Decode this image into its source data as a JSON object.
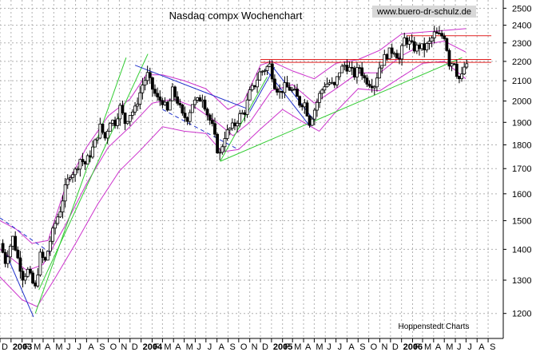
{
  "colors": {
    "candle": "#000000",
    "bollinger": "#cc33cc",
    "uptrend": "#33cc33",
    "downtrend": "#2233cc",
    "resistance": "#e02020",
    "grid": "#b0b0b0",
    "watermark_bg": "#d8d8d8"
  },
  "chart_data": {
    "type": "candlestick",
    "title": "Nasdaq compx Wochenchart",
    "watermark": "www.buero-dr-schulz.de",
    "source": "Hoppenstedt Charts",
    "y_axis": {
      "position": "right",
      "scale": "log",
      "ylim": [
        1130,
        2550
      ],
      "ticks": [
        1200,
        1300,
        1400,
        1500,
        1600,
        1700,
        1800,
        1900,
        2000,
        2100,
        2200,
        2300,
        2400,
        2500
      ]
    },
    "x_axis": {
      "range": [
        "2002-12-01",
        "2006-09-30"
      ],
      "tick_labels": [
        {
          "label": "D",
          "date": "2002-12-01"
        },
        {
          "label": "2003",
          "date": "2003-01-01",
          "bold": true
        },
        {
          "label": "F",
          "date": "2003-02-01"
        },
        {
          "label": "M",
          "date": "2003-03-01"
        },
        {
          "label": "A",
          "date": "2003-04-01"
        },
        {
          "label": "M",
          "date": "2003-05-01"
        },
        {
          "label": "J",
          "date": "2003-06-01"
        },
        {
          "label": "J",
          "date": "2003-07-01"
        },
        {
          "label": "A",
          "date": "2003-08-01"
        },
        {
          "label": "S",
          "date": "2003-09-01"
        },
        {
          "label": "O",
          "date": "2003-10-01"
        },
        {
          "label": "N",
          "date": "2003-11-01"
        },
        {
          "label": "D",
          "date": "2003-12-01"
        },
        {
          "label": "2004",
          "date": "2004-01-01",
          "bold": true
        },
        {
          "label": "F",
          "date": "2004-02-01"
        },
        {
          "label": "M",
          "date": "2004-03-01"
        },
        {
          "label": "A",
          "date": "2004-04-01"
        },
        {
          "label": "M",
          "date": "2004-05-01"
        },
        {
          "label": "J",
          "date": "2004-06-01"
        },
        {
          "label": "J",
          "date": "2004-07-01"
        },
        {
          "label": "A",
          "date": "2004-08-01"
        },
        {
          "label": "S",
          "date": "2004-09-01"
        },
        {
          "label": "O",
          "date": "2004-10-01"
        },
        {
          "label": "N",
          "date": "2004-11-01"
        },
        {
          "label": "D",
          "date": "2004-12-01"
        },
        {
          "label": "2005",
          "date": "2005-01-01",
          "bold": true
        },
        {
          "label": "F",
          "date": "2005-02-01"
        },
        {
          "label": "M",
          "date": "2005-03-01"
        },
        {
          "label": "A",
          "date": "2005-04-01"
        },
        {
          "label": "M",
          "date": "2005-05-01"
        },
        {
          "label": "J",
          "date": "2005-06-01"
        },
        {
          "label": "J",
          "date": "2005-07-01"
        },
        {
          "label": "A",
          "date": "2005-08-01"
        },
        {
          "label": "S",
          "date": "2005-09-01"
        },
        {
          "label": "O",
          "date": "2005-10-01"
        },
        {
          "label": "N",
          "date": "2005-11-01"
        },
        {
          "label": "D",
          "date": "2005-12-01"
        },
        {
          "label": "2006",
          "date": "2006-01-01",
          "bold": true
        },
        {
          "label": "F",
          "date": "2006-02-01"
        },
        {
          "label": "M",
          "date": "2006-03-01"
        },
        {
          "label": "A",
          "date": "2006-04-01"
        },
        {
          "label": "M",
          "date": "2006-05-01"
        },
        {
          "label": "J",
          "date": "2006-06-01"
        },
        {
          "label": "J",
          "date": "2006-07-01"
        },
        {
          "label": "A",
          "date": "2006-08-01"
        },
        {
          "label": "S",
          "date": "2006-09-01"
        }
      ]
    },
    "grid": true,
    "price_path": [
      [
        "2002-12-06",
        1420
      ],
      [
        "2002-12-20",
        1360
      ],
      [
        "2003-01-10",
        1440
      ],
      [
        "2003-01-24",
        1370
      ],
      [
        "2003-02-07",
        1310
      ],
      [
        "2003-02-21",
        1330
      ],
      [
        "2003-03-07",
        1290
      ],
      [
        "2003-03-14",
        1275
      ],
      [
        "2003-03-28",
        1380
      ],
      [
        "2003-04-11",
        1360
      ],
      [
        "2003-04-25",
        1430
      ],
      [
        "2003-05-09",
        1490
      ],
      [
        "2003-05-23",
        1540
      ],
      [
        "2003-06-06",
        1620
      ],
      [
        "2003-06-20",
        1680
      ],
      [
        "2003-07-04",
        1690
      ],
      [
        "2003-07-18",
        1740
      ],
      [
        "2003-08-01",
        1720
      ],
      [
        "2003-08-15",
        1760
      ],
      [
        "2003-08-29",
        1810
      ],
      [
        "2003-09-12",
        1880
      ],
      [
        "2003-09-26",
        1830
      ],
      [
        "2003-10-10",
        1910
      ],
      [
        "2003-10-24",
        1900
      ],
      [
        "2003-11-07",
        1970
      ],
      [
        "2003-11-21",
        1900
      ],
      [
        "2003-12-05",
        1940
      ],
      [
        "2003-12-19",
        1960
      ],
      [
        "2004-01-09",
        2080
      ],
      [
        "2004-01-23",
        2130
      ],
      [
        "2004-02-06",
        2060
      ],
      [
        "2004-02-20",
        2010
      ],
      [
        "2004-03-05",
        2000
      ],
      [
        "2004-03-19",
        1950
      ],
      [
        "2004-04-02",
        2050
      ],
      [
        "2004-04-16",
        2000
      ],
      [
        "2004-04-30",
        1930
      ],
      [
        "2004-05-14",
        1920
      ],
      [
        "2004-05-28",
        1990
      ],
      [
        "2004-06-11",
        2000
      ],
      [
        "2004-06-25",
        2020
      ],
      [
        "2004-07-09",
        1940
      ],
      [
        "2004-07-23",
        1880
      ],
      [
        "2004-08-06",
        1780
      ],
      [
        "2004-08-13",
        1760
      ],
      [
        "2004-08-27",
        1840
      ],
      [
        "2004-09-10",
        1870
      ],
      [
        "2004-09-24",
        1890
      ],
      [
        "2004-10-08",
        1930
      ],
      [
        "2004-10-22",
        1950
      ],
      [
        "2004-11-05",
        2040
      ],
      [
        "2004-11-19",
        2080
      ],
      [
        "2004-12-03",
        2140
      ],
      [
        "2004-12-17",
        2160
      ],
      [
        "2004-12-31",
        2180
      ],
      [
        "2005-01-14",
        2080
      ],
      [
        "2005-01-28",
        2040
      ],
      [
        "2005-02-11",
        2070
      ],
      [
        "2005-02-25",
        2060
      ],
      [
        "2005-03-11",
        2040
      ],
      [
        "2005-03-25",
        1990
      ],
      [
        "2005-04-08",
        1990
      ],
      [
        "2005-04-22",
        1900
      ],
      [
        "2005-05-06",
        1960
      ],
      [
        "2005-05-20",
        2030
      ],
      [
        "2005-06-03",
        2080
      ],
      [
        "2005-06-17",
        2090
      ],
      [
        "2005-07-01",
        2070
      ],
      [
        "2005-07-15",
        2150
      ],
      [
        "2005-07-29",
        2180
      ],
      [
        "2005-08-12",
        2160
      ],
      [
        "2005-08-26",
        2130
      ],
      [
        "2005-09-09",
        2170
      ],
      [
        "2005-09-23",
        2110
      ],
      [
        "2005-10-07",
        2090
      ],
      [
        "2005-10-21",
        2080
      ],
      [
        "2005-11-04",
        2170
      ],
      [
        "2005-11-18",
        2220
      ],
      [
        "2005-12-02",
        2250
      ],
      [
        "2005-12-16",
        2260
      ],
      [
        "2005-12-30",
        2210
      ],
      [
        "2006-01-13",
        2320
      ],
      [
        "2006-01-27",
        2300
      ],
      [
        "2006-02-10",
        2270
      ],
      [
        "2006-02-24",
        2280
      ],
      [
        "2006-03-10",
        2270
      ],
      [
        "2006-03-24",
        2300
      ],
      [
        "2006-04-07",
        2350
      ],
      [
        "2006-04-21",
        2340
      ],
      [
        "2006-05-05",
        2340
      ],
      [
        "2006-05-12",
        2270
      ],
      [
        "2006-05-19",
        2190
      ],
      [
        "2006-06-02",
        2200
      ],
      [
        "2006-06-09",
        2140
      ],
      [
        "2006-06-16",
        2110
      ],
      [
        "2006-06-23",
        2120
      ],
      [
        "2006-06-30",
        2170
      ]
    ],
    "bollinger_bands": {
      "middle": [
        [
          "2002-12-01",
          1400
        ],
        [
          "2003-02-15",
          1330
        ],
        [
          "2003-04-01",
          1350
        ],
        [
          "2003-06-01",
          1480
        ],
        [
          "2003-08-01",
          1640
        ],
        [
          "2003-10-01",
          1790
        ],
        [
          "2003-12-01",
          1880
        ],
        [
          "2004-02-01",
          1990
        ],
        [
          "2004-04-01",
          2010
        ],
        [
          "2004-06-01",
          1970
        ],
        [
          "2004-08-01",
          1900
        ],
        [
          "2004-09-15",
          1840
        ],
        [
          "2004-11-01",
          1900
        ],
        [
          "2005-01-01",
          2050
        ],
        [
          "2005-03-01",
          2080
        ],
        [
          "2005-05-01",
          1990
        ],
        [
          "2005-07-01",
          2060
        ],
        [
          "2005-09-01",
          2140
        ],
        [
          "2005-11-01",
          2140
        ],
        [
          "2006-01-01",
          2230
        ],
        [
          "2006-03-01",
          2290
        ],
        [
          "2006-05-01",
          2310
        ],
        [
          "2006-06-30",
          2250
        ]
      ],
      "upper": [
        [
          "2002-12-01",
          1500
        ],
        [
          "2003-01-15",
          1470
        ],
        [
          "2003-03-01",
          1420
        ],
        [
          "2003-04-15",
          1430
        ],
        [
          "2003-06-01",
          1620
        ],
        [
          "2003-08-01",
          1790
        ],
        [
          "2003-10-01",
          1930
        ],
        [
          "2003-12-01",
          2010
        ],
        [
          "2004-01-15",
          2130
        ],
        [
          "2004-03-01",
          2130
        ],
        [
          "2004-05-01",
          2100
        ],
        [
          "2004-07-01",
          2060
        ],
        [
          "2004-09-01",
          1960
        ],
        [
          "2004-10-15",
          2000
        ],
        [
          "2004-12-01",
          2180
        ],
        [
          "2005-01-01",
          2200
        ],
        [
          "2005-03-01",
          2150
        ],
        [
          "2005-05-01",
          2110
        ],
        [
          "2005-07-01",
          2190
        ],
        [
          "2005-09-01",
          2210
        ],
        [
          "2005-11-01",
          2260
        ],
        [
          "2006-01-01",
          2350
        ],
        [
          "2006-03-01",
          2360
        ],
        [
          "2006-05-01",
          2370
        ],
        [
          "2006-06-30",
          2380
        ]
      ],
      "lower": [
        [
          "2002-12-01",
          1310
        ],
        [
          "2003-02-01",
          1240
        ],
        [
          "2003-03-15",
          1220
        ],
        [
          "2003-05-01",
          1300
        ],
        [
          "2003-07-01",
          1420
        ],
        [
          "2003-09-01",
          1560
        ],
        [
          "2003-11-01",
          1690
        ],
        [
          "2004-01-01",
          1780
        ],
        [
          "2004-03-01",
          1880
        ],
        [
          "2004-05-01",
          1860
        ],
        [
          "2004-07-01",
          1850
        ],
        [
          "2004-08-15",
          1770
        ],
        [
          "2004-10-01",
          1780
        ],
        [
          "2004-12-01",
          1870
        ],
        [
          "2005-02-01",
          1960
        ],
        [
          "2005-04-01",
          1900
        ],
        [
          "2005-05-15",
          1860
        ],
        [
          "2005-07-01",
          1950
        ],
        [
          "2005-09-01",
          2060
        ],
        [
          "2005-11-01",
          2050
        ],
        [
          "2006-01-01",
          2120
        ],
        [
          "2006-03-01",
          2190
        ],
        [
          "2006-05-01",
          2200
        ],
        [
          "2006-06-30",
          2110
        ]
      ]
    },
    "trend_lines": [
      {
        "color": "uptrend",
        "style": "solid",
        "points": [
          [
            "2003-03-10",
            1200
          ],
          [
            "2003-11-20",
            2220
          ]
        ]
      },
      {
        "color": "uptrend",
        "style": "solid",
        "points": [
          [
            "2003-03-20",
            1270
          ],
          [
            "2004-01-20",
            2240
          ]
        ]
      },
      {
        "color": "uptrend",
        "style": "solid",
        "points": [
          [
            "2004-08-10",
            1730
          ],
          [
            "2006-06-20",
            2220
          ]
        ]
      },
      {
        "color": "uptrend",
        "style": "solid",
        "points": [
          [
            "2004-08-10",
            1730
          ],
          [
            "2004-12-20",
            2120
          ]
        ]
      },
      {
        "color": "downtrend",
        "style": "solid",
        "points": [
          [
            "2002-12-20",
            1380
          ],
          [
            "2003-03-05",
            1190
          ]
        ]
      },
      {
        "color": "downtrend",
        "style": "dashed",
        "points": [
          [
            "2002-12-01",
            1510
          ],
          [
            "2003-04-20",
            1390
          ]
        ]
      },
      {
        "color": "downtrend",
        "style": "solid",
        "points": [
          [
            "2003-12-15",
            2180
          ],
          [
            "2004-10-30",
            1960
          ]
        ]
      },
      {
        "color": "downtrend",
        "style": "dashed",
        "points": [
          [
            "2004-03-01",
            1960
          ],
          [
            "2004-09-30",
            1780
          ]
        ]
      },
      {
        "color": "downtrend",
        "style": "solid",
        "points": [
          [
            "2004-12-15",
            2160
          ],
          [
            "2005-04-20",
            1880
          ]
        ]
      },
      {
        "color": "downtrend",
        "style": "solid",
        "points": [
          [
            "2005-01-05",
            2170
          ],
          [
            "2005-04-30",
            1910
          ]
        ]
      },
      {
        "color": "downtrend",
        "style": "solid",
        "points": [
          [
            "2004-11-01",
            1950
          ],
          [
            "2005-01-10",
            2170
          ]
        ]
      },
      {
        "color": "resistance",
        "style": "solid",
        "points": [
          [
            "2004-12-01",
            2210
          ],
          [
            "2006-09-10",
            2210
          ]
        ]
      },
      {
        "color": "resistance",
        "style": "solid",
        "points": [
          [
            "2004-12-01",
            2195
          ],
          [
            "2006-09-10",
            2195
          ]
        ]
      },
      {
        "color": "resistance",
        "style": "solid",
        "points": [
          [
            "2006-01-15",
            2340
          ],
          [
            "2006-09-10",
            2340
          ]
        ]
      }
    ]
  }
}
